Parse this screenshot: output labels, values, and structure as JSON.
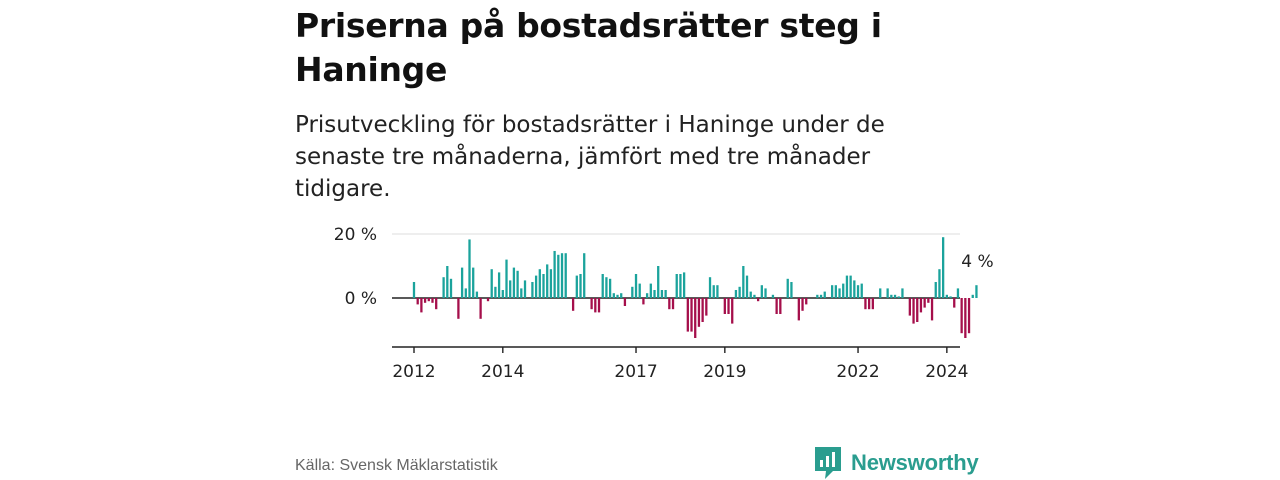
{
  "header": {
    "title": "Priserna på bostadsrätter steg i Haninge",
    "subtitle": "Prisutveckling för bostadsrätter i Haninge under de senaste tre månaderna, jämfört med tre månader tidigare."
  },
  "footer": {
    "source": "Källa: Svensk Mäklarstatistik",
    "brand": "Newsworthy"
  },
  "colors": {
    "positive": "#1ba39c",
    "negative": "#a50f4b",
    "axis": "#222222",
    "grid": "#dddddd",
    "brand": "#2a9d8f"
  },
  "chart_data": {
    "type": "bar",
    "title": "Priserna på bostadsrätter steg i Haninge",
    "xlabel": "",
    "ylabel": "",
    "y_unit": "%",
    "ylim": [
      -15,
      20
    ],
    "x_start": "2012-01",
    "frequency": "monthly",
    "x_ticks": [
      "2012",
      "2014",
      "2017",
      "2019",
      "2022",
      "2024"
    ],
    "y_ticks": [
      "0 %",
      "20 %"
    ],
    "y_tick_values": [
      0,
      20
    ],
    "annotation": {
      "text": "4 %",
      "target": "last"
    },
    "values": [
      5,
      -2,
      -4.5,
      -1.5,
      -1,
      -1.5,
      -3.5,
      0,
      6.5,
      10,
      6,
      0,
      -6.5,
      9.5,
      3,
      18.3,
      9.5,
      2,
      -6.5,
      0,
      -1,
      9,
      3.5,
      8,
      2.5,
      12,
      5.5,
      9.5,
      8.5,
      3,
      5.5,
      0,
      5,
      7,
      9,
      7.5,
      10.5,
      9,
      14.7,
      13.5,
      14,
      14,
      0,
      -4,
      7,
      7.5,
      14,
      0,
      -3.5,
      -4.5,
      -4.5,
      7.5,
      6.5,
      6,
      1.5,
      1,
      1.5,
      -2.5,
      0,
      3.5,
      7.5,
      4.5,
      -2,
      1.5,
      4.5,
      2.5,
      10,
      2.5,
      2.5,
      -3.5,
      -3.5,
      7.5,
      7.5,
      8,
      -10.5,
      -10.5,
      -12.5,
      -9,
      -7.5,
      -5.5,
      6.5,
      4,
      4,
      0,
      -5,
      -5,
      -8,
      2.5,
      3.5,
      10,
      7,
      2,
      1,
      -1,
      4,
      3,
      0,
      1,
      -5,
      -5,
      0,
      6,
      5,
      0,
      -7,
      -4,
      -2,
      0,
      0,
      1,
      1,
      2,
      0,
      4,
      4,
      3,
      4.5,
      7,
      7,
      5.5,
      4,
      4.5,
      -3.5,
      -3.5,
      -3.5,
      0,
      3,
      0,
      3,
      1,
      1,
      0.5,
      3,
      0,
      -5.5,
      -8,
      -7.5,
      -4.5,
      -3,
      -1.5,
      -7,
      5,
      9,
      19,
      1,
      0.5,
      -3,
      3,
      -11,
      -12.5,
      -11,
      1,
      4
    ]
  }
}
